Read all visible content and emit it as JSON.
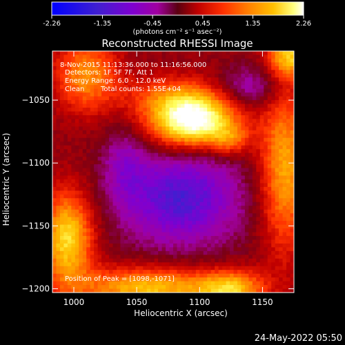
{
  "colorbar": {
    "ticks": [
      "-2.26",
      "-1.35",
      "-0.45",
      "0.45",
      "1.35",
      "2.26"
    ],
    "unit": "(photons cm⁻² s⁻¹ asec⁻²)",
    "range": [
      -2.26,
      2.26
    ]
  },
  "footer": {
    "date": "24-May-2022 05:50"
  },
  "overlay": {
    "time": "8-Nov-2015 11:13:36.000 to 11:16:56.000",
    "detectors": "Detectors: 1F 5F 7F, Att 1",
    "energy": "Energy Range: 6.0 - 12.0 keV",
    "clean": "Clean",
    "counts": "Total counts: 1.55E+04",
    "peak": "Position of Peak = [1098,-1071]"
  },
  "chart_data": {
    "type": "heatmap",
    "title": "Reconstructed RHESSI Image",
    "xlabel": "Heliocentric X (arcsec)",
    "ylabel": "Heliocentric Y (arcsec)",
    "xlim": [
      983,
      1175
    ],
    "ylim": [
      -1203,
      -1011
    ],
    "xticks": [
      1000,
      1050,
      1100,
      1150
    ],
    "yticks": [
      -1050,
      -1100,
      -1150,
      -1200
    ],
    "xtick_labels": [
      "1000",
      "1050",
      "1100",
      "1150"
    ],
    "ytick_labels": [
      "−1050",
      "−1100",
      "−1150",
      "−1200"
    ],
    "zlim": [
      -2.26,
      2.26
    ],
    "peak": [
      1098,
      -1071
    ],
    "colormap": [
      "#0000ff",
      "#3f1fd0",
      "#7f00d0",
      "#a000a0",
      "#7a0014",
      "#c00000",
      "#ff3000",
      "#ff7f00",
      "#ffc000",
      "#ffff60",
      "#ffffff"
    ]
  }
}
